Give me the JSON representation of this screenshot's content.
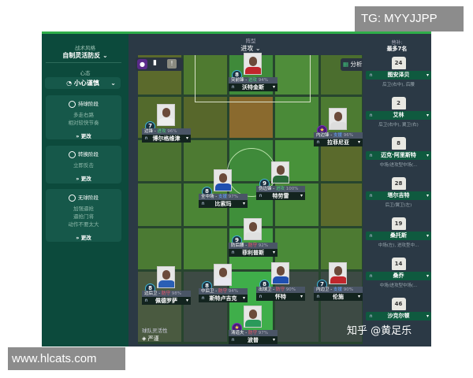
{
  "left_panel": {
    "style_label": "战术风格",
    "style_value": "自制灵活防反",
    "mentality_label": "心态",
    "mentality_value": "小心谨慎",
    "phases": [
      {
        "title": "持球阶段",
        "lines": [
          "多走右路",
          "相对较快节奏"
        ],
        "change": "更改"
      },
      {
        "title": "转换阶段",
        "lines": [
          "立即反击"
        ],
        "change": "更改"
      },
      {
        "title": "无球阶段",
        "lines": [
          "加强逼抢",
          "逼抢门将",
          "动作不要太大"
        ],
        "change": "更改"
      }
    ]
  },
  "formation": {
    "label": "阵型",
    "value": "进攻"
  },
  "toolbar": {
    "analysis": "分析"
  },
  "team_fluidity": {
    "label": "球队灵活性",
    "value": "严谨"
  },
  "players": [
    {
      "num": "8",
      "role": "突前锋",
      "duty": "进攻",
      "duty_type": "att",
      "pct": "94%",
      "name": "沃特金斯",
      "kit": "#c0262c"
    },
    {
      "num": "7",
      "role": "边锋",
      "duty": "进攻",
      "duty_type": "att",
      "pct": "96%",
      "name": "博尔格维津",
      "kit": "#eeeeee"
    },
    {
      "num": "★",
      "role": "内边锋",
      "duty": "支援",
      "duty_type": "sup",
      "pct": "96%",
      "name": "拉菲尼亚",
      "kit": "#dddddd"
    },
    {
      "num": "8",
      "role": "全中场",
      "duty": "支援",
      "duty_type": "sup",
      "pct": "97%",
      "name": "比索玛",
      "kit": "#1f4fb0"
    },
    {
      "num": "9",
      "role": "伪边锋",
      "duty": "进攻",
      "duty_type": "att",
      "pct": "100%",
      "name": "特劳雷",
      "kit": "#2a6a3a"
    },
    {
      "num": "9",
      "role": "防后腰",
      "duty": "防守",
      "duty_type": "def",
      "pct": "92%",
      "name": "菲利普斯",
      "kit": "#e0e0e0"
    },
    {
      "num": "8",
      "role": "边后卫",
      "duty": "防守",
      "duty_type": "def",
      "pct": "98%",
      "name": "佩德罗萨",
      "kit": "#2a5fb5"
    },
    {
      "num": "8",
      "role": "中后卫",
      "duty": "防守",
      "duty_type": "def",
      "pct": "94%",
      "name": "斯特卢吉克",
      "kit": "#e8e8f0"
    },
    {
      "num": "8",
      "role": "出球卫",
      "duty": "防守",
      "duty_type": "def",
      "pct": "90%",
      "name": "怀特",
      "kit": "#1f4fb0"
    },
    {
      "num": "7",
      "role": "内边卫",
      "duty": "支援",
      "duty_type": "sup",
      "pct": "90%",
      "name": "伦施",
      "kit": "#c0262c"
    },
    {
      "num": "★",
      "role": "清道夫",
      "duty": "防守",
      "duty_type": "def",
      "pct": "97%",
      "name": "波普",
      "kit": "#2a9a5a"
    }
  ],
  "subs": {
    "title": "替补:",
    "subtitle": "最多7名",
    "items": [
      {
        "num": "24",
        "name": "图安泽贝",
        "pos": "后卫(右中), 后腰"
      },
      {
        "num": "2",
        "name": "艾林",
        "pos": "后卫(右中), 翼卫(右)"
      },
      {
        "num": "8",
        "name": "迈克·阿里斯特",
        "pos": "中场/进攻型中场(..."
      },
      {
        "num": "28",
        "name": "塔尔吉特",
        "pos": "后卫/翼卫(左)"
      },
      {
        "num": "19",
        "name": "桑托斯",
        "pos": "中场(左), 进攻型中..."
      },
      {
        "num": "14",
        "name": "桑乔",
        "pos": "中场/进攻型中场(..."
      },
      {
        "num": "46",
        "name": "沙克尔顿",
        "pos": ""
      }
    ]
  },
  "watermarks": {
    "tg": "TG: MYYJJPP",
    "site": "www.hlcats.com",
    "zhihu": "知乎 @黄足乐"
  }
}
